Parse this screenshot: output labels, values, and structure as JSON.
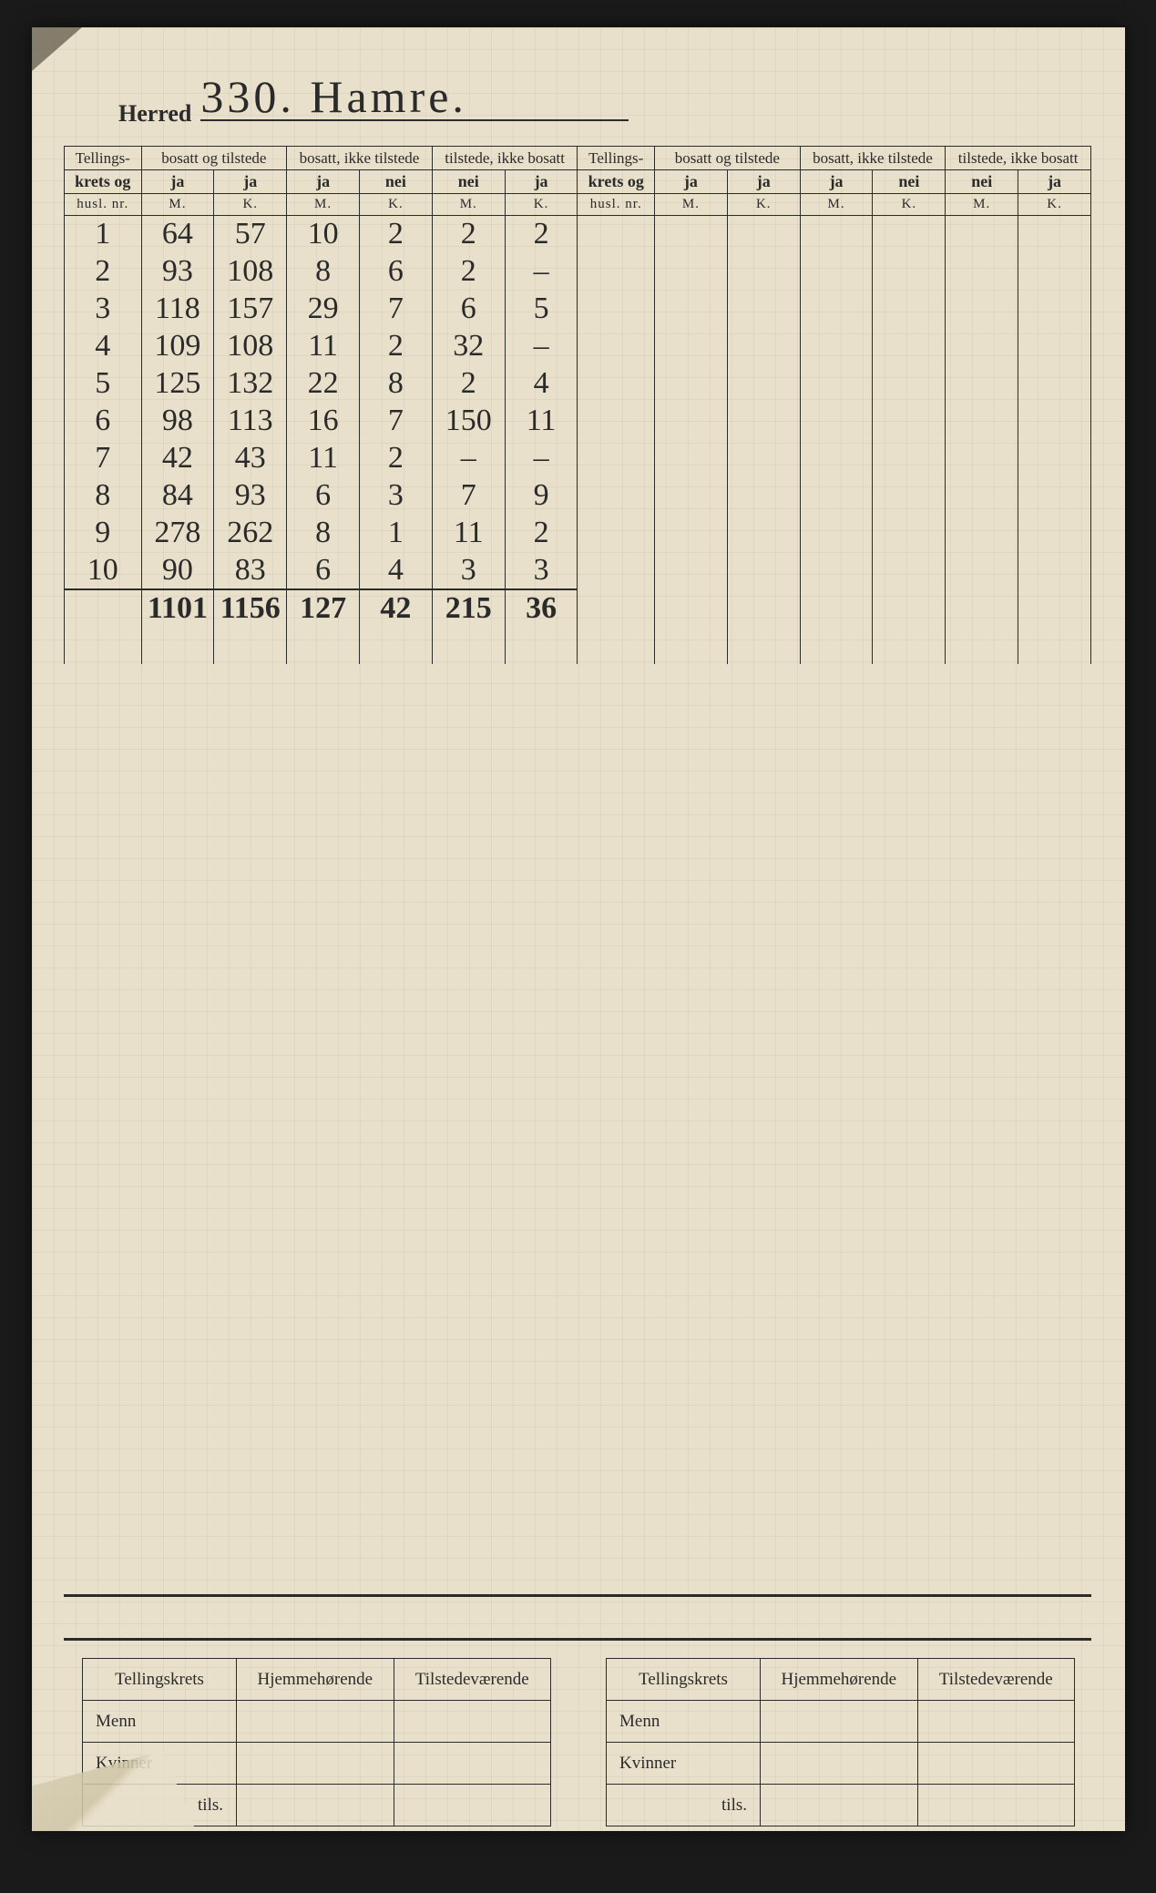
{
  "header": {
    "herred_label": "Herred",
    "herred_value": "330.   Hamre."
  },
  "columns": {
    "id_header_line1": "Tellings-",
    "id_header_line2": "krets og",
    "id_header_line3": "husl. nr.",
    "groups": [
      {
        "title": "bosatt og tilstede",
        "sub_m": "ja",
        "sub_k": "ja"
      },
      {
        "title": "bosatt, ikke tilstede",
        "sub_m": "ja",
        "sub_k": "nei"
      },
      {
        "title": "tilstede, ikke bosatt",
        "sub_m": "nei",
        "sub_k": "ja"
      }
    ],
    "mk_m": "M.",
    "mk_k": "K."
  },
  "rows": [
    {
      "id": "1",
      "c": [
        "64",
        "57",
        "10",
        "2",
        "2",
        "2"
      ]
    },
    {
      "id": "2",
      "c": [
        "93",
        "108",
        "8",
        "6",
        "2",
        "–"
      ]
    },
    {
      "id": "3",
      "c": [
        "118",
        "157",
        "29",
        "7",
        "6",
        "5"
      ]
    },
    {
      "id": "4",
      "c": [
        "109",
        "108",
        "11",
        "2",
        "32",
        "–"
      ]
    },
    {
      "id": "5",
      "c": [
        "125",
        "132",
        "22",
        "8",
        "2",
        "4"
      ]
    },
    {
      "id": "6",
      "c": [
        "98",
        "113",
        "16",
        "7",
        "150",
        "11"
      ]
    },
    {
      "id": "7",
      "c": [
        "42",
        "43",
        "11",
        "2",
        "–",
        "–"
      ]
    },
    {
      "id": "8",
      "c": [
        "84",
        "93",
        "6",
        "3",
        "7",
        "9"
      ]
    },
    {
      "id": "9",
      "c": [
        "278",
        "262",
        "8",
        "1",
        "11",
        "2"
      ]
    },
    {
      "id": "10",
      "c": [
        "90",
        "83",
        "6",
        "4",
        "3",
        "3"
      ]
    }
  ],
  "totals": {
    "id": "",
    "c": [
      "1101",
      "1156",
      "127",
      "42",
      "215",
      "36"
    ]
  },
  "summary": {
    "col_tellingskrets": "Tellingskrets",
    "col_hjemme": "Hjemmehørende",
    "col_tilstede": "Tilstedeværende",
    "row_menn": "Menn",
    "row_kvinner": "Kvinner",
    "row_tils": "tils."
  },
  "style": {
    "paper_bg": "#e8e0ca",
    "ink": "#2b2b2b",
    "hand_ink": "#2a2a2a",
    "grid_line": "rgba(150,140,110,0.12)"
  }
}
